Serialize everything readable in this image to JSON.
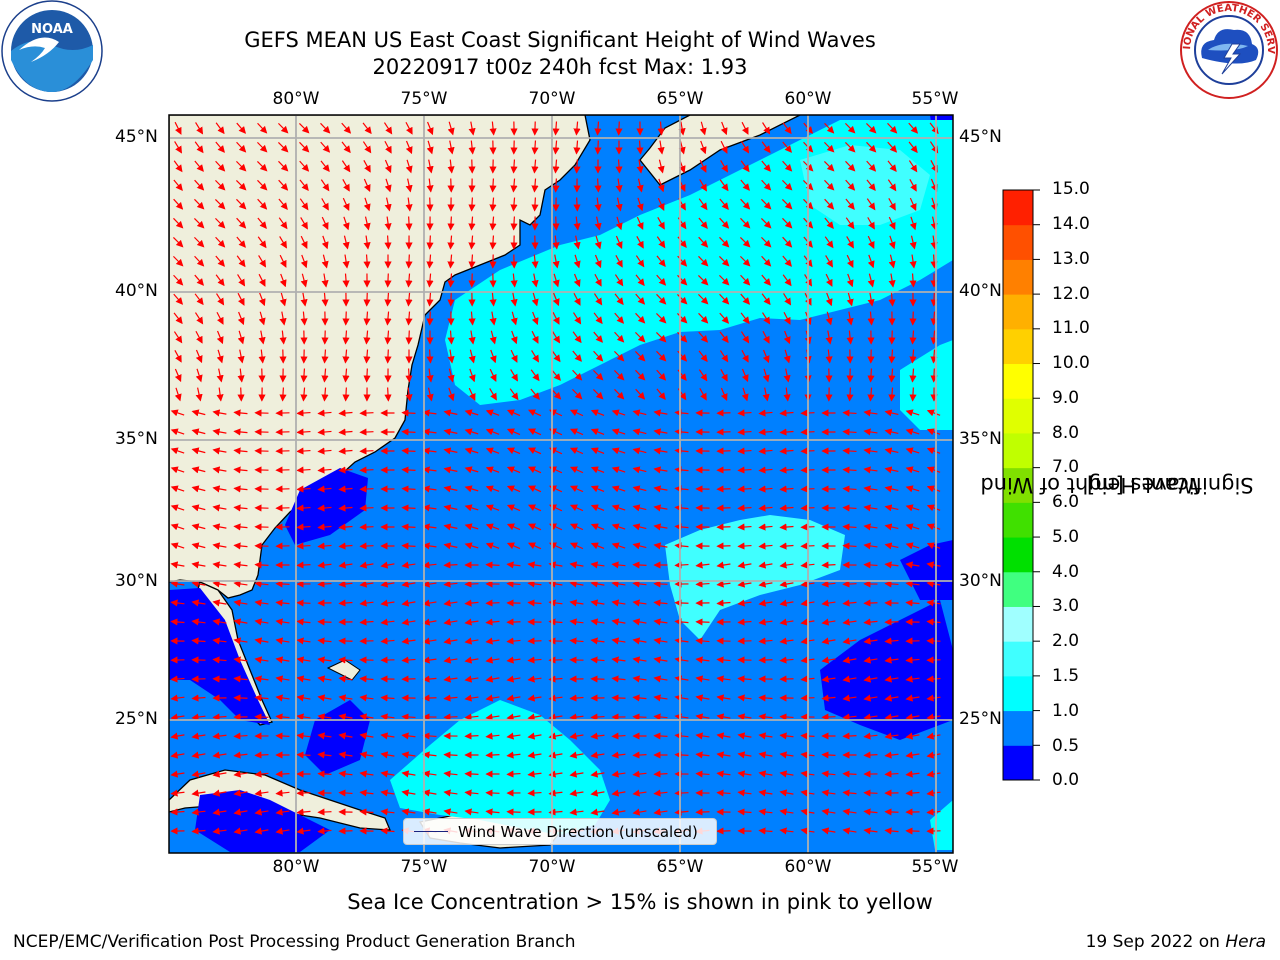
{
  "title_line1": "GEFS MEAN US East Coast Significant Height of Wind Waves",
  "title_line2": "20220917 t00z 240h fcst   Max: 1.93",
  "lon_labels": [
    "80°W",
    "75°W",
    "70°W",
    "65°W",
    "60°W",
    "55°W"
  ],
  "lat_labels": [
    "45°N",
    "40°N",
    "35°N",
    "30°N",
    "25°N"
  ],
  "colorbar": {
    "ticks": [
      "0.0",
      "0.5",
      "1.0",
      "1.5",
      "2.0",
      "3.0",
      "4.0",
      "5.0",
      "6.0",
      "7.0",
      "8.0",
      "9.0",
      "10.0",
      "11.0",
      "12.0",
      "13.0",
      "14.0",
      "15.0"
    ],
    "colors": [
      "#0000ff",
      "#0080ff",
      "#00ffff",
      "#40ffff",
      "#a0ffff",
      "#40ff80",
      "#00e000",
      "#40e000",
      "#80e000",
      "#c0ff00",
      "#e0ff00",
      "#ffff00",
      "#ffd000",
      "#ffb000",
      "#ff8000",
      "#ff5000",
      "#ff2000"
    ],
    "label": "Significant Height of Wind Waves [m]",
    "label_line1": "Significant Height of Wind",
    "label_line2": "Waves [m]"
  },
  "legend_text": "Wind Wave Direction (unscaled)",
  "caption": "Sea Ice Concentration > 15% is shown in pink to yellow",
  "footer_left": "NCEP/EMC/Verification Post Processing Product Generation Branch",
  "footer_date": "19 Sep 2022 on",
  "footer_host": "Hera",
  "logos": {
    "left": "NOAA",
    "right": "NATIONAL WEATHER SERVICE"
  },
  "colors": {
    "land": "#efefdc",
    "grid": "#b0b0b0",
    "arrow": "#ff0000",
    "coast": "#000000"
  }
}
